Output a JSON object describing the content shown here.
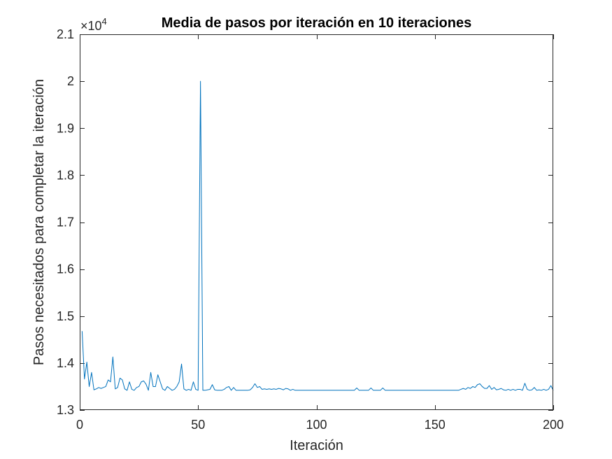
{
  "chart_data": {
    "type": "line",
    "title": "Media de pasos por iteración en 10 iteraciones",
    "xlabel": "Iteración",
    "ylabel": "Pasos necesitados para completar la iteración",
    "xlim": [
      0,
      200
    ],
    "ylim": [
      13000,
      21000
    ],
    "x_ticks": [
      "0",
      "50",
      "100",
      "150",
      "200"
    ],
    "y_ticks": [
      "1.3",
      "1.4",
      "1.5",
      "1.6",
      "1.7",
      "1.8",
      "1.9",
      "2",
      "2.1"
    ],
    "y_exponent": {
      "base": "×10",
      "power": "4"
    },
    "grid": false,
    "line_color": "#0072BD",
    "series": [
      {
        "x": [
          1,
          2,
          3,
          4,
          5,
          6,
          7,
          8,
          9,
          10,
          11,
          12,
          13,
          14,
          15,
          16,
          17,
          18,
          19,
          20,
          21,
          22,
          23,
          24,
          25,
          26,
          27,
          28,
          29,
          30,
          31,
          32,
          33,
          34,
          35,
          36,
          37,
          38,
          39,
          40,
          41,
          42,
          43,
          44,
          45,
          46,
          47,
          48,
          49,
          50,
          51,
          52,
          53,
          54,
          55,
          56,
          57,
          58,
          59,
          60,
          61,
          62,
          63,
          64,
          65,
          66,
          67,
          68,
          69,
          70,
          71,
          72,
          73,
          74,
          75,
          76,
          77,
          78,
          79,
          80,
          81,
          82,
          83,
          84,
          85,
          86,
          87,
          88,
          89,
          90,
          91,
          92,
          93,
          94,
          95,
          96,
          97,
          98,
          99,
          100,
          101,
          102,
          103,
          104,
          105,
          106,
          107,
          108,
          109,
          110,
          111,
          112,
          113,
          114,
          115,
          116,
          117,
          118,
          119,
          120,
          121,
          122,
          123,
          124,
          125,
          126,
          127,
          128,
          129,
          130,
          131,
          132,
          133,
          134,
          135,
          136,
          137,
          138,
          139,
          140,
          141,
          142,
          143,
          144,
          145,
          146,
          147,
          148,
          149,
          150,
          151,
          152,
          153,
          154,
          155,
          156,
          157,
          158,
          159,
          160,
          161,
          162,
          163,
          164,
          165,
          166,
          167,
          168,
          169,
          170,
          171,
          172,
          173,
          174,
          175,
          176,
          177,
          178,
          179,
          180,
          181,
          182,
          183,
          184,
          185,
          186,
          187,
          188,
          189,
          190,
          191,
          192,
          193,
          194,
          195,
          196,
          197,
          198,
          199,
          200
        ],
        "values": [
          14680,
          13660,
          14020,
          13500,
          13800,
          13430,
          13450,
          13480,
          13460,
          13480,
          13500,
          13640,
          13600,
          14130,
          13450,
          13480,
          13680,
          13640,
          13450,
          13420,
          13600,
          13440,
          13420,
          13480,
          13500,
          13600,
          13620,
          13550,
          13420,
          13800,
          13500,
          13500,
          13750,
          13600,
          13450,
          13420,
          13500,
          13460,
          13420,
          13440,
          13500,
          13600,
          13980,
          13450,
          13420,
          13440,
          13420,
          13600,
          13440,
          13420,
          20000,
          13420,
          13420,
          13430,
          13440,
          13540,
          13430,
          13420,
          13420,
          13420,
          13440,
          13480,
          13500,
          13420,
          13480,
          13420,
          13420,
          13420,
          13420,
          13420,
          13420,
          13430,
          13480,
          13560,
          13480,
          13500,
          13440,
          13450,
          13440,
          13450,
          13440,
          13450,
          13440,
          13460,
          13450,
          13430,
          13460,
          13450,
          13420,
          13440,
          13420,
          13420,
          13420,
          13420,
          13420,
          13420,
          13420,
          13420,
          13420,
          13420,
          13420,
          13420,
          13420,
          13420,
          13420,
          13420,
          13420,
          13420,
          13420,
          13420,
          13420,
          13420,
          13420,
          13420,
          13420,
          13420,
          13470,
          13420,
          13420,
          13420,
          13420,
          13420,
          13470,
          13420,
          13420,
          13420,
          13420,
          13470,
          13420,
          13420,
          13420,
          13420,
          13420,
          13420,
          13420,
          13420,
          13420,
          13420,
          13420,
          13420,
          13420,
          13420,
          13420,
          13420,
          13420,
          13420,
          13420,
          13420,
          13420,
          13420,
          13420,
          13420,
          13420,
          13420,
          13420,
          13420,
          13420,
          13420,
          13420,
          13420,
          13440,
          13460,
          13440,
          13480,
          13460,
          13500,
          13480,
          13540,
          13560,
          13500,
          13460,
          13460,
          13520,
          13440,
          13480,
          13430,
          13440,
          13460,
          13430,
          13420,
          13440,
          13420,
          13440,
          13420,
          13440,
          13440,
          13420,
          13570,
          13440,
          13420,
          13430,
          13480,
          13420,
          13430,
          13420,
          13440,
          13420,
          13440,
          13520,
          13420
        ]
      }
    ]
  }
}
